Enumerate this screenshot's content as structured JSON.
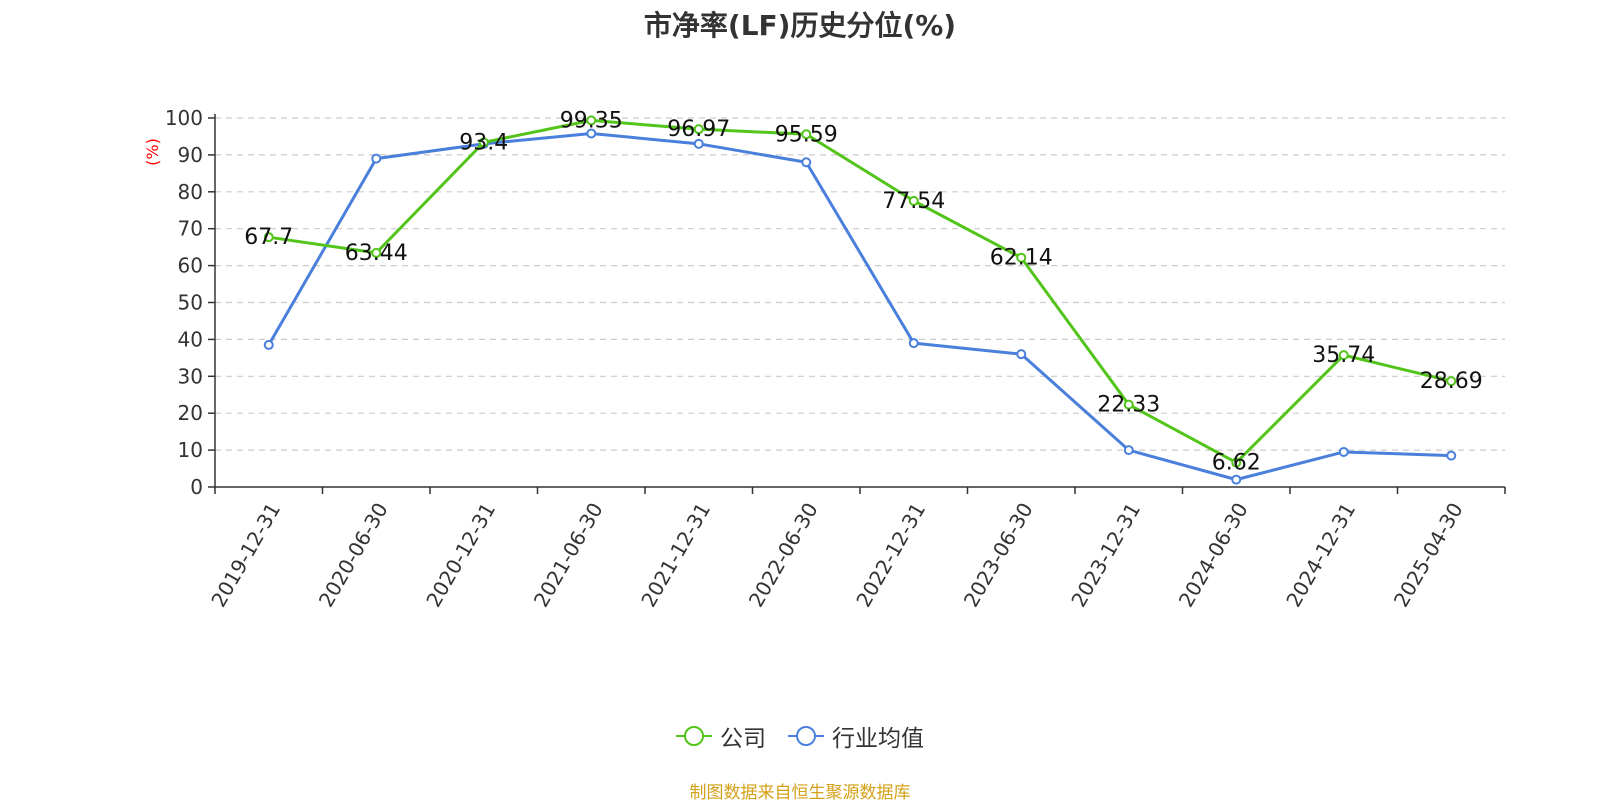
{
  "chart_data": {
    "type": "line",
    "title": "市净率(LF)历史分位(%)",
    "ylabel": "(%)",
    "ylim": [
      0,
      100
    ],
    "yticks": [
      0,
      10,
      20,
      30,
      40,
      50,
      60,
      70,
      80,
      90,
      100
    ],
    "grid": true,
    "legend_position": "bottom",
    "categories": [
      "2019-12-31",
      "2020-06-30",
      "2020-12-31",
      "2021-06-30",
      "2021-12-31",
      "2022-06-30",
      "2022-12-31",
      "2023-06-30",
      "2023-12-31",
      "2024-06-30",
      "2024-12-31",
      "2025-04-30"
    ],
    "series": [
      {
        "name": "公司",
        "color": "#52c41a",
        "values": [
          67.7,
          63.44,
          93.4,
          99.35,
          96.97,
          95.59,
          77.54,
          62.14,
          22.33,
          6.62,
          35.74,
          28.69
        ],
        "labels": [
          "67.7",
          "63.44",
          "93.4",
          "99.35",
          "96.97",
          "95.59",
          "77.54",
          "62.14",
          "22.33",
          "6.62",
          "35.74",
          "28.69"
        ]
      },
      {
        "name": "行业均值",
        "color": "#4a7fdc",
        "values": [
          38.5,
          89,
          93,
          95.8,
          93,
          88,
          39,
          36,
          10,
          2,
          9.5,
          8.5
        ]
      }
    ]
  },
  "source_note": "制图数据来自恒生聚源数据库",
  "colors": {
    "ylabel": "#ff0000",
    "source_note": "#d4a017",
    "axis": "#333333",
    "grid": "#cccccc"
  }
}
